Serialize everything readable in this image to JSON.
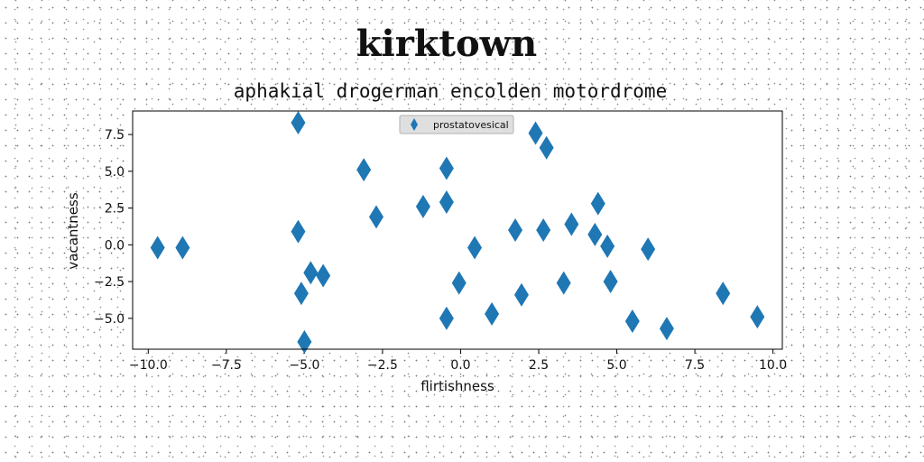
{
  "chart_data": {
    "type": "scatter",
    "title": "kirktown",
    "subtitle": "aphakial drogerman encolden motordrome",
    "xlabel": "flirtishness",
    "ylabel": "vacantness",
    "xlim": [
      -10.5,
      10.3
    ],
    "ylim": [
      -7.1,
      9.1
    ],
    "xticks": [
      -10.0,
      -7.5,
      -5.0,
      -2.5,
      0.0,
      2.5,
      5.0,
      7.5,
      10.0
    ],
    "yticks": [
      -5.0,
      -2.5,
      0.0,
      2.5,
      5.0,
      7.5
    ],
    "grid": false,
    "legend": {
      "position": "top-center"
    },
    "marker": "diamond",
    "series": [
      {
        "name": "prostatovesical",
        "color": "#1f77b4",
        "points": [
          [
            -9.7,
            -0.2
          ],
          [
            -8.9,
            -0.2
          ],
          [
            -5.2,
            8.3
          ],
          [
            -5.2,
            0.9
          ],
          [
            -5.1,
            -3.3
          ],
          [
            -5.0,
            -6.6
          ],
          [
            -4.8,
            -1.9
          ],
          [
            -4.4,
            -2.1
          ],
          [
            -3.1,
            5.1
          ],
          [
            -2.7,
            1.9
          ],
          [
            -1.2,
            2.6
          ],
          [
            -0.45,
            5.2
          ],
          [
            -0.45,
            2.9
          ],
          [
            -0.45,
            -5.0
          ],
          [
            -0.05,
            -2.6
          ],
          [
            0.45,
            -0.2
          ],
          [
            1.0,
            -4.7
          ],
          [
            1.75,
            1.0
          ],
          [
            1.95,
            -3.4
          ],
          [
            2.4,
            7.6
          ],
          [
            2.65,
            1.0
          ],
          [
            2.75,
            6.6
          ],
          [
            3.3,
            -2.6
          ],
          [
            3.55,
            1.4
          ],
          [
            4.3,
            0.7
          ],
          [
            4.4,
            2.8
          ],
          [
            4.7,
            -0.1
          ],
          [
            4.8,
            -2.5
          ],
          [
            5.5,
            -5.2
          ],
          [
            6.0,
            -0.3
          ],
          [
            6.6,
            -5.7
          ],
          [
            8.4,
            -3.3
          ],
          [
            9.5,
            -4.9
          ]
        ]
      }
    ]
  }
}
